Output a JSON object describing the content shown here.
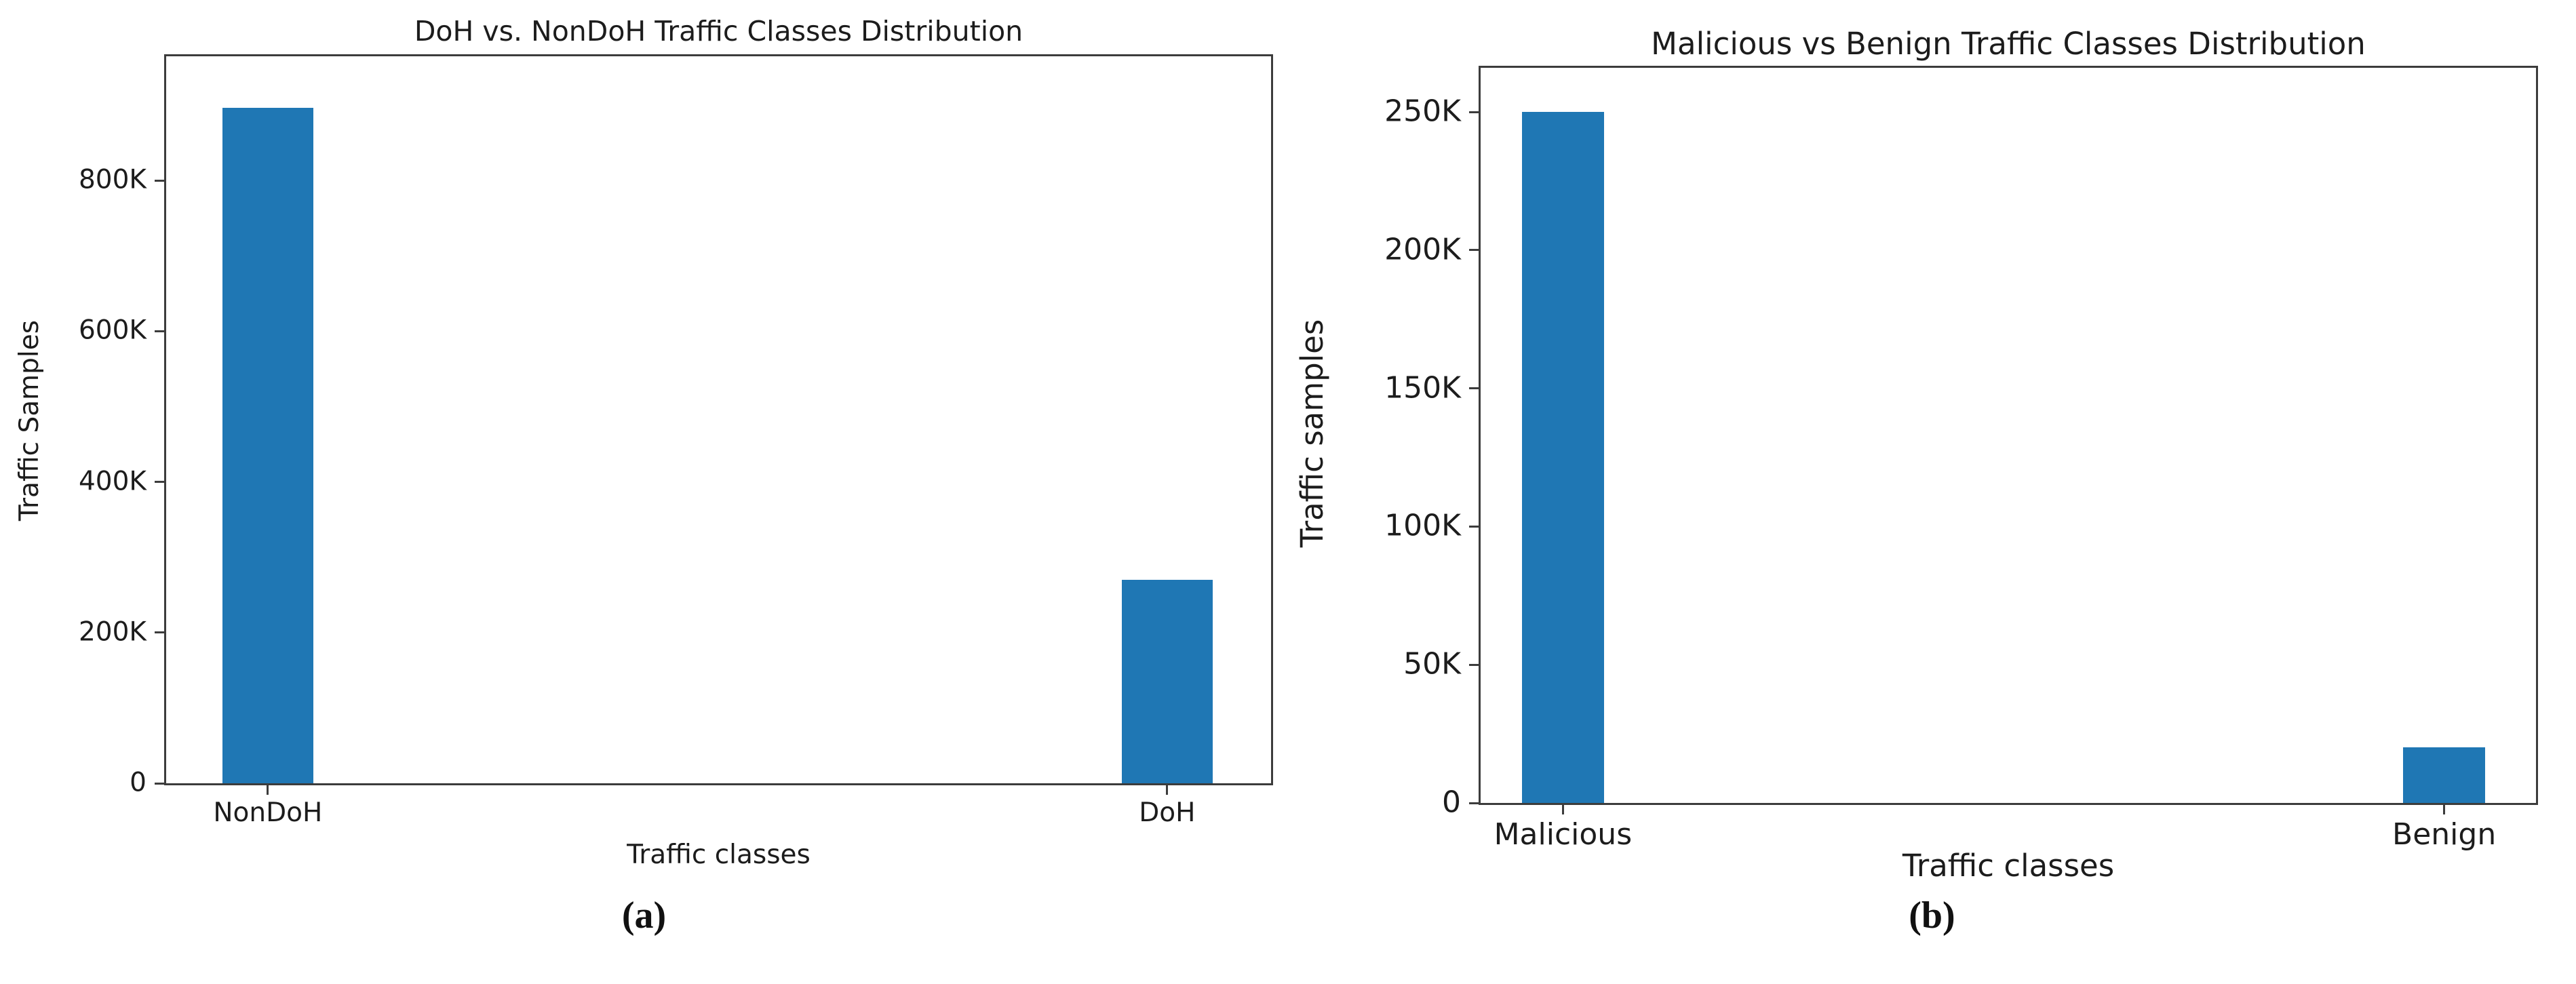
{
  "chart_data": [
    {
      "type": "bar",
      "title": "DoH vs. NonDoH Traffic Classes Distribution",
      "categories": [
        "NonDoH",
        "DoH"
      ],
      "values": [
        897000,
        270000
      ],
      "xlabel": "Traffic classes",
      "ylabel": "Traffic Samples",
      "ylim": [
        0,
        965000
      ],
      "yticks": [
        0,
        200000,
        400000,
        600000,
        800000
      ],
      "ytick_labels": [
        "0",
        "200K",
        "400K",
        "600K",
        "800K"
      ],
      "bar_color": "#1f77b4",
      "grid": false,
      "legend_position": "none",
      "caption": "(a)"
    },
    {
      "type": "bar",
      "title": "Malicious vs Benign Traffic Classes Distribution",
      "categories": [
        "Malicious",
        "Benign"
      ],
      "values": [
        250000,
        20000
      ],
      "xlabel": "Traffic classes",
      "ylabel": "Traffic samples",
      "ylim": [
        0,
        266000
      ],
      "yticks": [
        0,
        50000,
        100000,
        150000,
        200000,
        250000
      ],
      "ytick_labels": [
        "0",
        "50K",
        "100K",
        "150K",
        "200K",
        "250K"
      ],
      "bar_color": "#1f77b4",
      "grid": false,
      "legend_position": "none",
      "caption": "(b)"
    }
  ]
}
